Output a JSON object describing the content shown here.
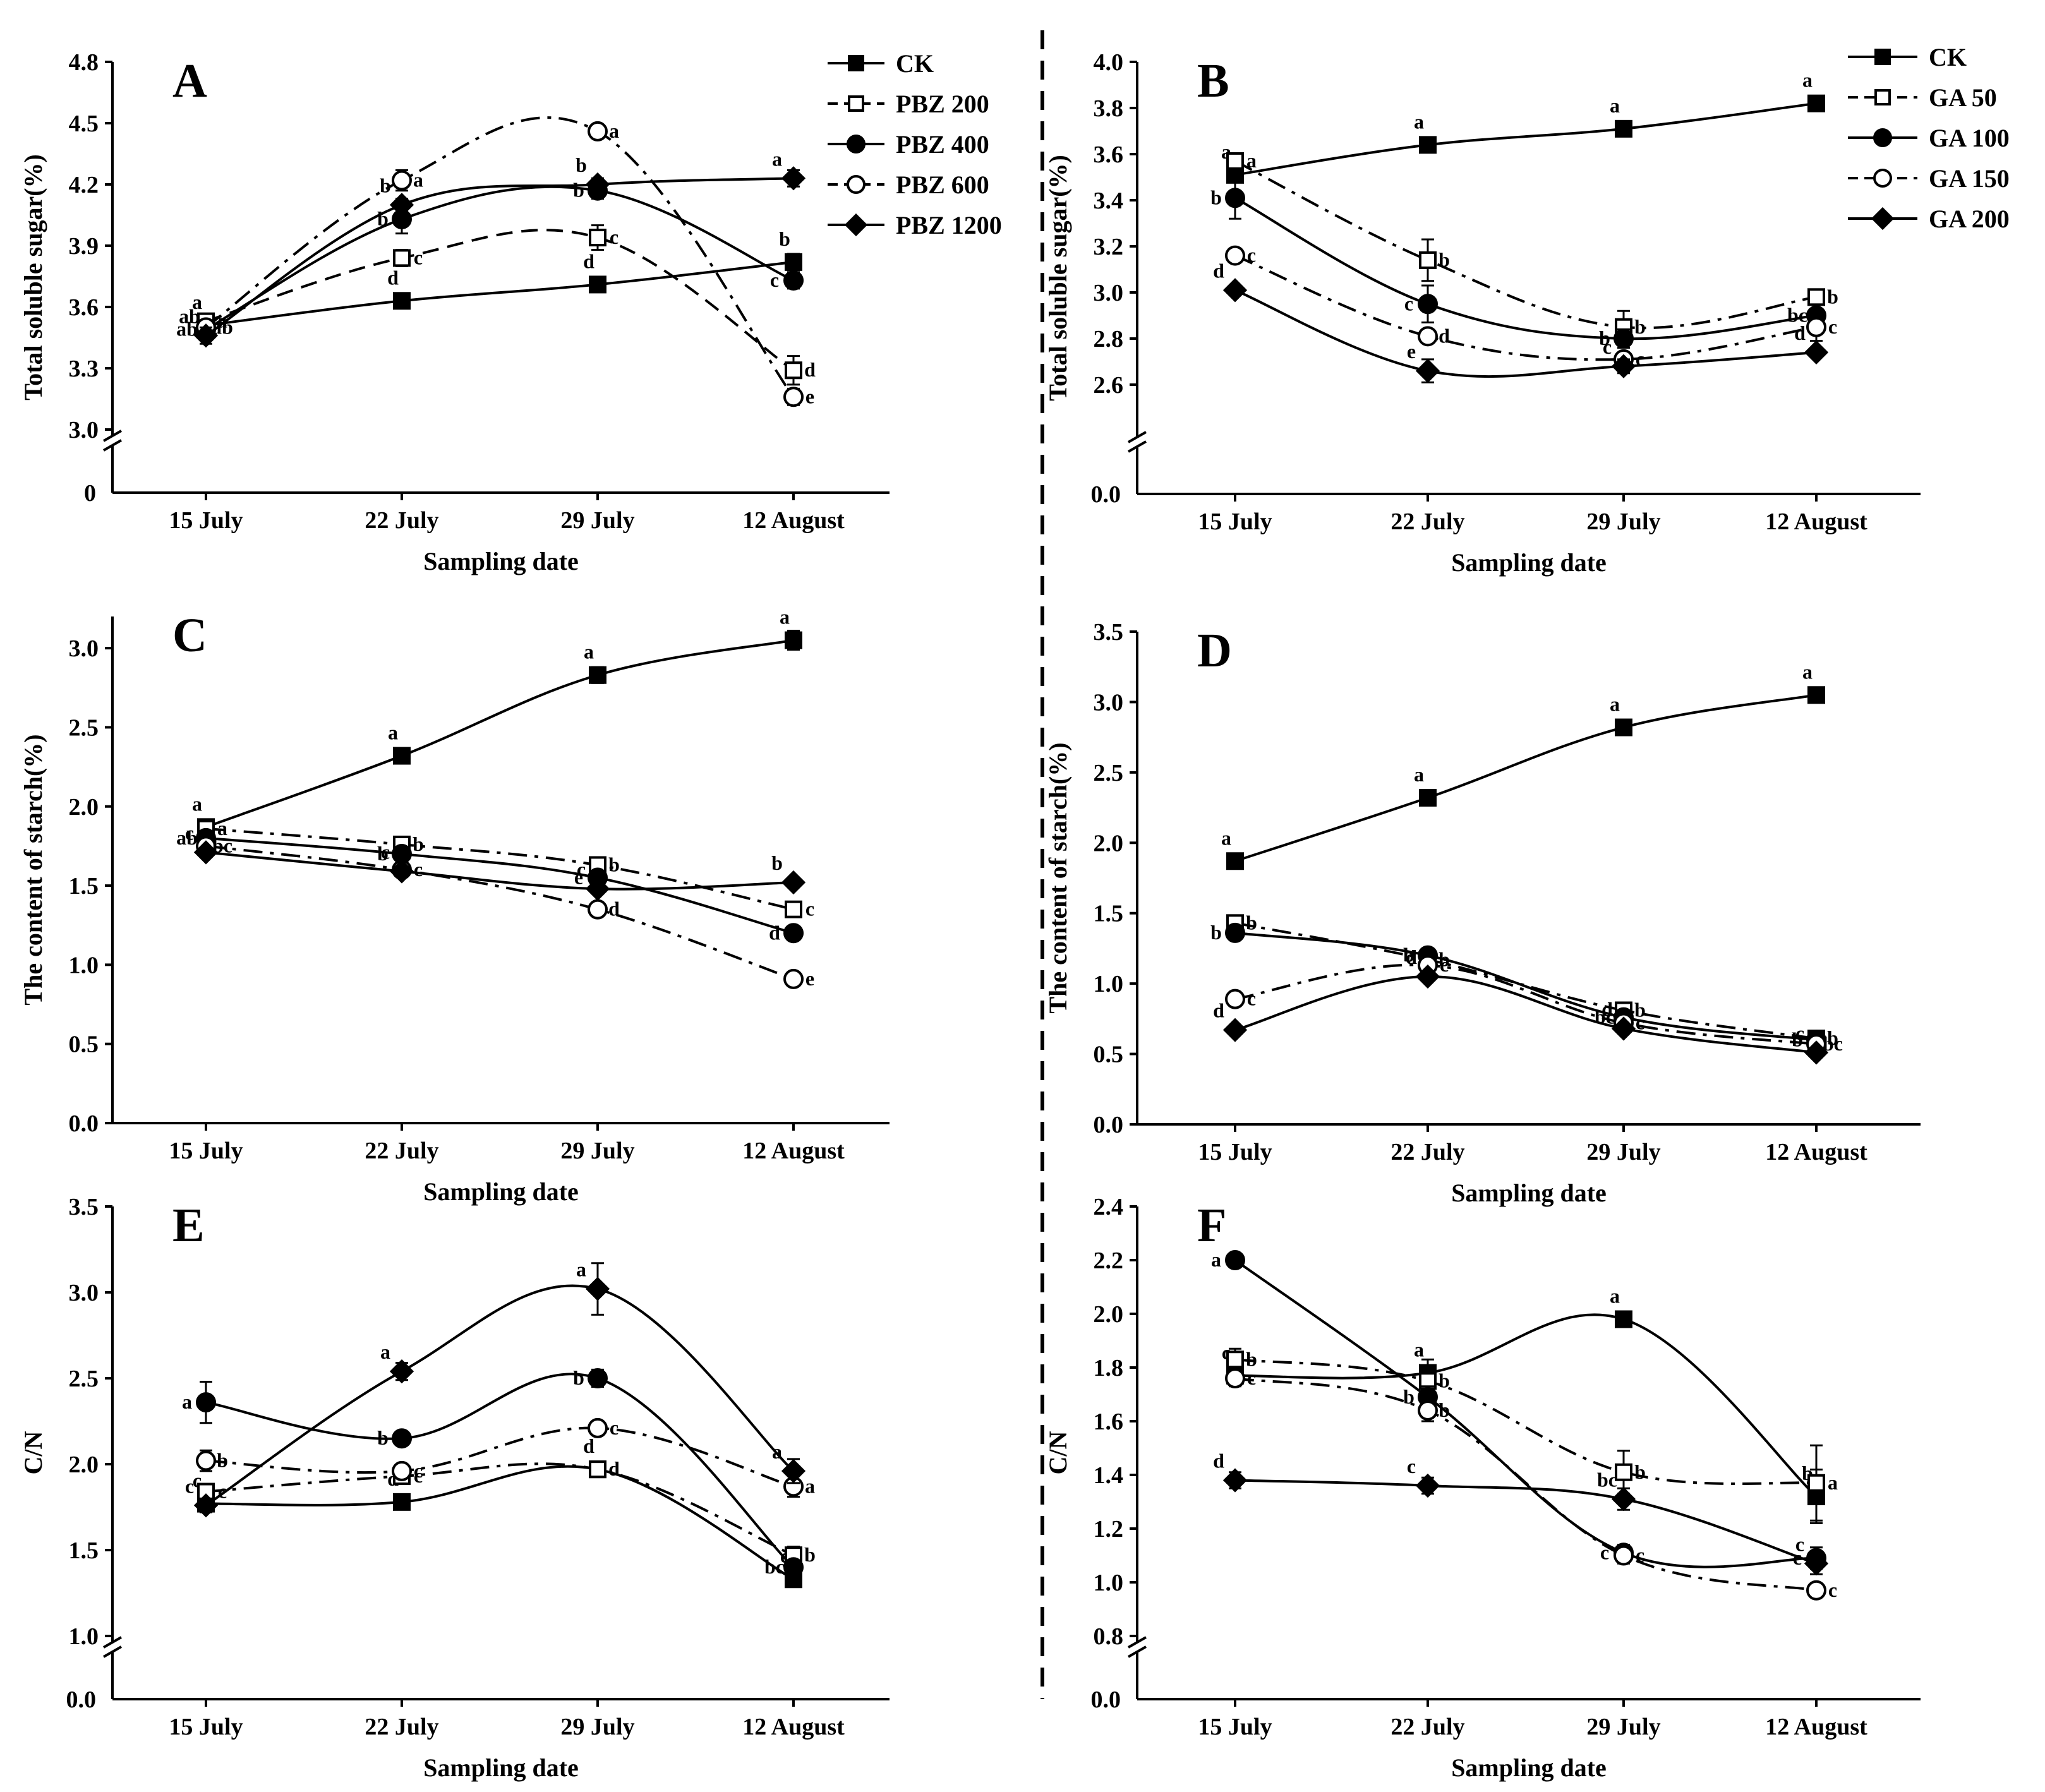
{
  "figure": {
    "divider": "dashed"
  },
  "chart_data": [
    {
      "panel": "A",
      "type": "line",
      "xlabel": "Sampling date",
      "ylabel": "Total soluble sugar(%)",
      "categories": [
        "15 July",
        "22 July",
        "29 July",
        "12 August"
      ],
      "ylim": [
        3.0,
        4.8
      ],
      "yticks": [
        3.0,
        3.3,
        3.6,
        3.9,
        4.2,
        4.5,
        4.8
      ],
      "axis_break": true,
      "zero_label": "0",
      "series": [
        {
          "name": "CK",
          "style": "solid",
          "marker": "square-filled",
          "values": [
            3.51,
            3.63,
            3.71,
            3.82
          ],
          "errors": [
            0.02,
            0.02,
            0.02,
            0.04
          ],
          "labels": [
            "a",
            "d",
            "d",
            "b"
          ]
        },
        {
          "name": "PBZ 200",
          "style": "dash",
          "marker": "square-open",
          "values": [
            3.53,
            3.84,
            3.94,
            3.29
          ],
          "errors": [
            0.03,
            0.04,
            0.06,
            0.07
          ],
          "labels": [
            "a",
            "c",
            "c",
            "d"
          ]
        },
        {
          "name": "PBZ 400",
          "style": "solid",
          "marker": "circle-filled",
          "values": [
            3.49,
            4.03,
            4.17,
            3.73
          ],
          "errors": [
            0.03,
            0.07,
            0.04,
            0.04
          ],
          "labels": [
            "ab",
            "b",
            "b",
            "c"
          ]
        },
        {
          "name": "PBZ 600",
          "style": "dashdot",
          "marker": "circle-open",
          "values": [
            3.5,
            4.22,
            4.46,
            3.16
          ],
          "errors": [
            0.03,
            0.05,
            0.03,
            0.04
          ],
          "labels": [
            "ab",
            "a",
            "a",
            "e"
          ]
        },
        {
          "name": "PBZ 1200",
          "style": "solid",
          "marker": "diamond-filled",
          "values": [
            3.46,
            4.1,
            4.2,
            4.23
          ],
          "errors": [
            0.04,
            0.03,
            0.03,
            0.04
          ],
          "labels": [
            "ab",
            "b",
            "b",
            "a"
          ]
        }
      ]
    },
    {
      "panel": "B",
      "type": "line",
      "xlabel": "Sampling date",
      "ylabel": "Total soluble sugar(%)",
      "categories": [
        "15 July",
        "22 July",
        "29 July",
        "12 August"
      ],
      "ylim": [
        2.4,
        4.0
      ],
      "yticks": [
        2.6,
        2.8,
        3.0,
        3.2,
        3.4,
        3.6,
        3.8,
        4.0
      ],
      "axis_break": true,
      "zero_label": "0.0",
      "series": [
        {
          "name": "CK",
          "style": "solid",
          "marker": "square-filled",
          "values": [
            3.51,
            3.64,
            3.71,
            3.82
          ],
          "errors": [
            0.02,
            0.02,
            0.02,
            0.03
          ],
          "labels": [
            "a",
            "a",
            "a",
            "a"
          ]
        },
        {
          "name": "GA 50",
          "style": "dashdot",
          "marker": "square-open",
          "values": [
            3.57,
            3.14,
            2.85,
            2.98
          ],
          "errors": [
            0.03,
            0.09,
            0.07,
            0.03
          ],
          "labels": [
            "a",
            "b",
            "b",
            "b"
          ]
        },
        {
          "name": "GA 100",
          "style": "solid",
          "marker": "circle-filled",
          "values": [
            3.41,
            2.95,
            2.8,
            2.9
          ],
          "errors": [
            0.09,
            0.08,
            0.04,
            0.03
          ],
          "labels": [
            "b",
            "c",
            "b",
            "bc"
          ]
        },
        {
          "name": "GA 150",
          "style": "dashdot",
          "marker": "circle-open",
          "values": [
            3.16,
            2.81,
            2.71,
            2.85
          ],
          "errors": [
            0.03,
            0.03,
            0.02,
            0.06
          ],
          "labels": [
            "c",
            "d",
            "c",
            "c"
          ]
        },
        {
          "name": "GA 200",
          "style": "solid",
          "marker": "diamond-filled",
          "values": [
            3.01,
            2.66,
            2.68,
            2.74
          ],
          "errors": [
            0.02,
            0.05,
            0.03,
            0.02
          ],
          "labels": [
            "d",
            "e",
            "c",
            "d"
          ]
        }
      ]
    },
    {
      "panel": "C",
      "type": "line",
      "xlabel": "Sampling date",
      "ylabel": "The content of starch(%)",
      "categories": [
        "15 July",
        "22 July",
        "29 July",
        "12 August"
      ],
      "ylim": [
        0.0,
        3.2
      ],
      "yticks": [
        0.0,
        0.5,
        1.0,
        1.5,
        2.0,
        2.5,
        3.0
      ],
      "axis_break": false,
      "series": [
        {
          "name": "CK",
          "style": "solid",
          "marker": "square-filled",
          "values": [
            1.87,
            2.32,
            2.83,
            3.05
          ],
          "errors": [
            0.02,
            0.02,
            0.05,
            0.06
          ],
          "labels": [
            "a",
            "a",
            "a",
            "a"
          ]
        },
        {
          "name": "PBZ 200",
          "style": "dashdot",
          "marker": "square-open",
          "values": [
            1.86,
            1.76,
            1.63,
            1.35
          ],
          "errors": [
            0.02,
            0.02,
            0.03,
            0.02
          ],
          "labels": [
            "a",
            "b",
            "b",
            "c"
          ]
        },
        {
          "name": "PBZ 400",
          "style": "solid",
          "marker": "circle-filled",
          "values": [
            1.8,
            1.7,
            1.55,
            1.2
          ],
          "errors": [
            0.02,
            0.02,
            0.03,
            0.02
          ],
          "labels": [
            "ab",
            "b",
            "e",
            "d"
          ]
        },
        {
          "name": "PBZ 600",
          "style": "dashdot",
          "marker": "circle-open",
          "values": [
            1.75,
            1.6,
            1.35,
            0.91
          ],
          "errors": [
            0.02,
            0.02,
            0.03,
            0.04
          ],
          "labels": [
            "bc",
            "c",
            "d",
            "e"
          ]
        },
        {
          "name": "PBZ 1200",
          "style": "solid",
          "marker": "diamond-filled",
          "values": [
            1.71,
            1.59,
            1.48,
            1.52
          ],
          "errors": [
            0.02,
            0.02,
            0.03,
            0.03
          ],
          "labels": [
            "c",
            "c",
            "c",
            "b"
          ]
        }
      ]
    },
    {
      "panel": "D",
      "type": "line",
      "xlabel": "Sampling date",
      "ylabel": "The content of starch(%)",
      "categories": [
        "15 July",
        "22 July",
        "29 July",
        "12 August"
      ],
      "ylim": [
        0.0,
        3.5
      ],
      "yticks": [
        0.0,
        0.5,
        1.0,
        1.5,
        2.0,
        2.5,
        3.0,
        3.5
      ],
      "axis_break": false,
      "series": [
        {
          "name": "CK",
          "style": "solid",
          "marker": "square-filled",
          "values": [
            1.87,
            2.32,
            2.82,
            3.05
          ],
          "errors": [
            0.02,
            0.02,
            0.03,
            0.05
          ],
          "labels": [
            "a",
            "a",
            "a",
            "a"
          ]
        },
        {
          "name": "GA 50",
          "style": "dashdot",
          "marker": "square-open",
          "values": [
            1.43,
            1.17,
            0.81,
            0.61
          ],
          "errors": [
            0.02,
            0.03,
            0.03,
            0.02
          ],
          "labels": [
            "b",
            "b",
            "b",
            "b"
          ]
        },
        {
          "name": "GA 100",
          "style": "solid",
          "marker": "circle-filled",
          "values": [
            1.36,
            1.2,
            0.76,
            0.6
          ],
          "errors": [
            0.02,
            0.03,
            0.03,
            0.02
          ],
          "labels": [
            "b",
            "b",
            "bc",
            "b"
          ]
        },
        {
          "name": "GA 150",
          "style": "dashdot",
          "marker": "circle-open",
          "values": [
            0.89,
            1.13,
            0.72,
            0.57
          ],
          "errors": [
            0.02,
            0.03,
            0.03,
            0.02
          ],
          "labels": [
            "c",
            "c",
            "c",
            "bc"
          ]
        },
        {
          "name": "GA 200",
          "style": "solid",
          "marker": "diamond-filled",
          "values": [
            0.67,
            1.05,
            0.68,
            0.51
          ],
          "errors": [
            0.02,
            0.03,
            0.03,
            0.02
          ],
          "labels": [
            "d",
            "d",
            "d",
            "c"
          ]
        }
      ]
    },
    {
      "panel": "E",
      "type": "line",
      "xlabel": "Sampling date",
      "ylabel": "C/N",
      "categories": [
        "15 July",
        "22 July",
        "29 July",
        "12 August"
      ],
      "ylim": [
        1.0,
        3.5
      ],
      "yticks": [
        1.0,
        1.5,
        2.0,
        2.5,
        3.0,
        3.5
      ],
      "axis_break": true,
      "zero_label": "0.0",
      "series": [
        {
          "name": "CK",
          "style": "solid",
          "marker": "square-filled",
          "values": [
            1.77,
            1.78,
            1.97,
            1.33
          ],
          "errors": [
            0.02,
            0.02,
            0.03,
            0.03
          ],
          "labels": [
            "c",
            "d",
            "d",
            "c"
          ]
        },
        {
          "name": "PBZ 200",
          "style": "dashdot",
          "marker": "square-open",
          "values": [
            1.84,
            1.93,
            1.97,
            1.47
          ],
          "errors": [
            0.03,
            0.04,
            0.03,
            0.05
          ],
          "labels": [
            "c",
            "c",
            "d",
            "b"
          ]
        },
        {
          "name": "PBZ 400",
          "style": "solid",
          "marker": "circle-filled",
          "values": [
            2.36,
            2.15,
            2.5,
            1.4
          ],
          "errors": [
            0.12,
            0.04,
            0.05,
            0.04
          ],
          "labels": [
            "a",
            "b",
            "b",
            "bc"
          ]
        },
        {
          "name": "PBZ 600",
          "style": "dashdot",
          "marker": "circle-open",
          "values": [
            2.02,
            1.96,
            2.21,
            1.87
          ],
          "errors": [
            0.06,
            0.03,
            0.03,
            0.06
          ],
          "labels": [
            "b",
            "c",
            "c",
            "a"
          ]
        },
        {
          "name": "PBZ 1200",
          "style": "solid",
          "marker": "diamond-filled",
          "values": [
            1.76,
            2.54,
            3.02,
            1.96
          ],
          "errors": [
            0.04,
            0.05,
            0.15,
            0.07
          ],
          "labels": [
            "c",
            "a",
            "a",
            "a"
          ]
        }
      ]
    },
    {
      "panel": "F",
      "type": "line",
      "xlabel": "Sampling date",
      "ylabel": "C/N",
      "categories": [
        "15 July",
        "22 July",
        "29 July",
        "12 August"
      ],
      "ylim": [
        0.8,
        2.4
      ],
      "yticks": [
        0.8,
        1.0,
        1.2,
        1.4,
        1.6,
        1.8,
        2.0,
        2.2,
        2.4
      ],
      "axis_break": true,
      "zero_label": "0.0",
      "series": [
        {
          "name": "CK",
          "style": "solid",
          "marker": "square-filled",
          "values": [
            1.77,
            1.78,
            1.98,
            1.32
          ],
          "errors": [
            0.02,
            0.05,
            0.02,
            0.1
          ],
          "labels": [
            "c",
            "a",
            "a",
            "b"
          ]
        },
        {
          "name": "GA 50",
          "style": "dashdot",
          "marker": "square-open",
          "values": [
            1.83,
            1.75,
            1.41,
            1.37
          ],
          "errors": [
            0.04,
            0.04,
            0.08,
            0.14
          ],
          "labels": [
            "b",
            "b",
            "b",
            "a"
          ]
        },
        {
          "name": "GA 100",
          "style": "solid",
          "marker": "circle-filled",
          "values": [
            2.2,
            1.69,
            1.11,
            1.09
          ],
          "errors": [
            0.02,
            0.04,
            0.03,
            0.04
          ],
          "labels": [
            "a",
            "b",
            "c",
            "c"
          ]
        },
        {
          "name": "GA 150",
          "style": "dashdot",
          "marker": "circle-open",
          "values": [
            1.76,
            1.64,
            1.1,
            0.97
          ],
          "errors": [
            0.03,
            0.04,
            0.03,
            0.02
          ],
          "labels": [
            "c",
            "b",
            "c",
            "c"
          ]
        },
        {
          "name": "GA 200",
          "style": "solid",
          "marker": "diamond-filled",
          "values": [
            1.38,
            1.36,
            1.31,
            1.07
          ],
          "errors": [
            0.03,
            0.03,
            0.04,
            0.04
          ],
          "labels": [
            "d",
            "c",
            "bc",
            "c"
          ]
        }
      ]
    }
  ]
}
